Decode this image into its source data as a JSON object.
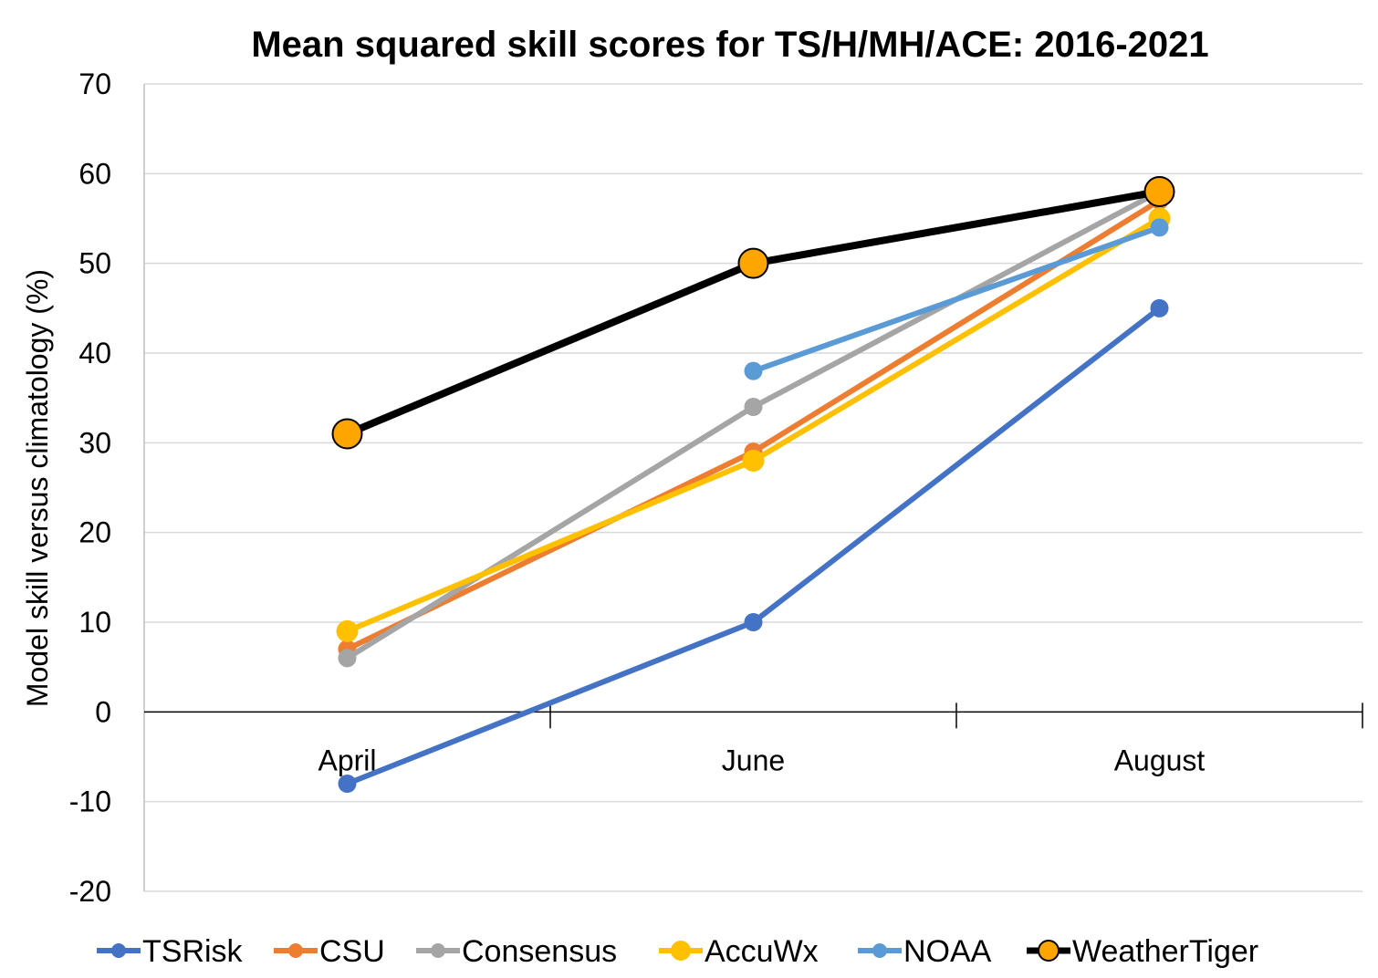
{
  "chart_data": {
    "type": "line",
    "title": "Mean squared skill scores for TS/H/MH/ACE: 2016-2021",
    "xlabel": "",
    "ylabel": "Model skill versus climatology (%)",
    "categories": [
      "April",
      "June",
      "August"
    ],
    "ylim": [
      -20,
      70
    ],
    "yticks": [
      70,
      60,
      50,
      40,
      30,
      20,
      10,
      0,
      -10,
      -20
    ],
    "grid": true,
    "legend_position": "bottom",
    "series": [
      {
        "name": "TSRisk",
        "color": "#4472C4",
        "values": [
          -8,
          10,
          45
        ]
      },
      {
        "name": "CSU",
        "color": "#ED7D31",
        "values": [
          7,
          29,
          57
        ]
      },
      {
        "name": "Consensus",
        "color": "#A5A5A5",
        "values": [
          6,
          34,
          58
        ]
      },
      {
        "name": "AccuWx",
        "color": "#FFC000",
        "values": [
          9,
          28,
          55
        ]
      },
      {
        "name": "NOAA",
        "color": "#5B9BD5",
        "values": [
          null,
          38,
          54
        ]
      },
      {
        "name": "WeatherTiger",
        "color": "#000000",
        "marker_color": "#FFA500",
        "values": [
          31,
          50,
          58
        ]
      }
    ]
  }
}
